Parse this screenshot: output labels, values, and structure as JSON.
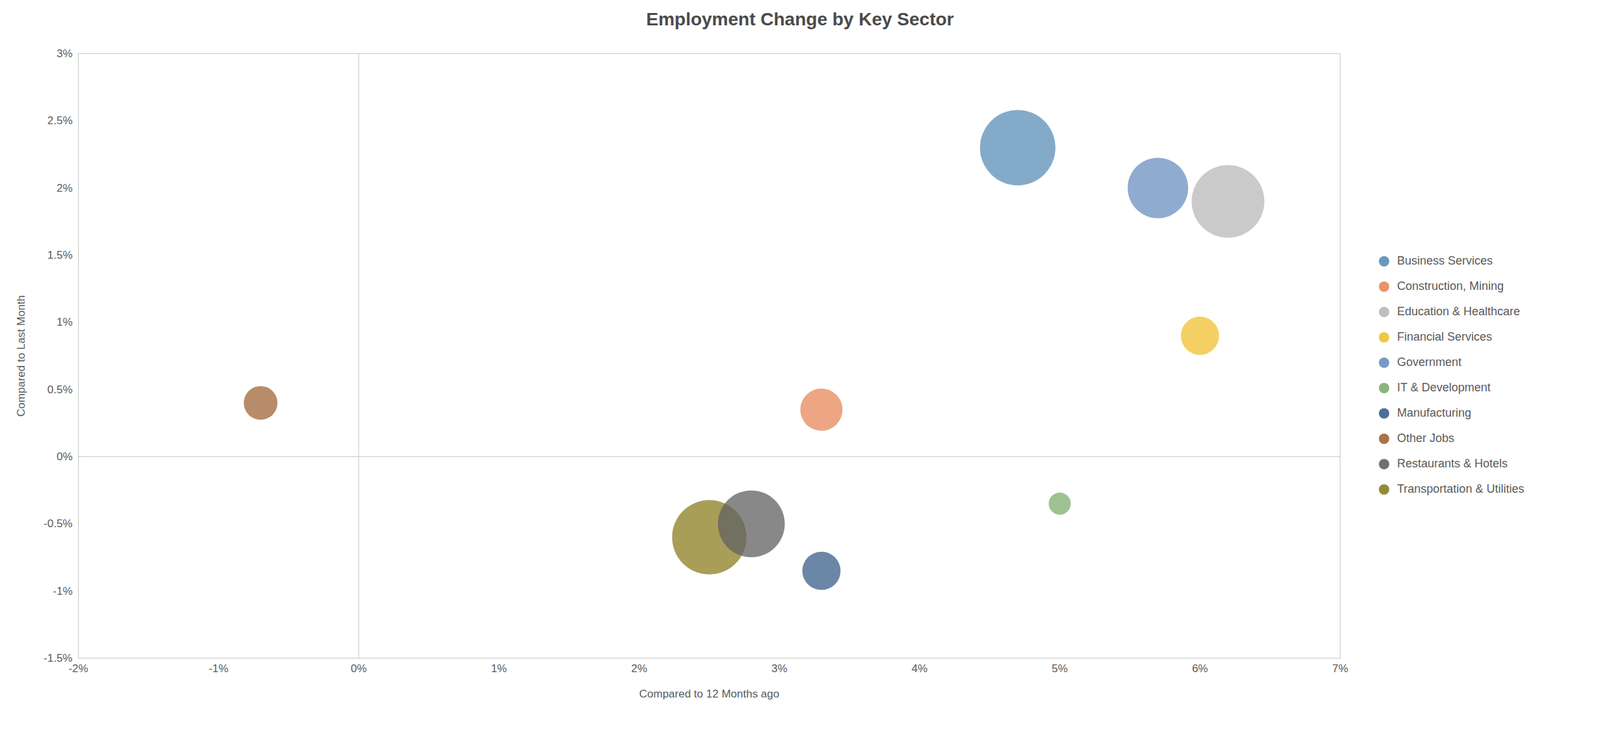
{
  "chart_data": {
    "type": "scatter",
    "title": "Employment Change by Key Sector",
    "xlabel": "Compared to 12 Months ago",
    "ylabel": "Compared to Last Month",
    "xlim": [
      -0.02,
      0.07
    ],
    "ylim": [
      -0.015,
      0.03
    ],
    "xticks": [
      {
        "value": -0.02,
        "label": "-2%"
      },
      {
        "value": -0.01,
        "label": "-1%"
      },
      {
        "value": 0,
        "label": "0%"
      },
      {
        "value": 0.01,
        "label": "1%"
      },
      {
        "value": 0.02,
        "label": "2%"
      },
      {
        "value": 0.03,
        "label": "3%"
      },
      {
        "value": 0.04,
        "label": "4%"
      },
      {
        "value": 0.05,
        "label": "5%"
      },
      {
        "value": 0.06,
        "label": "6%"
      },
      {
        "value": 0.07,
        "label": "7%"
      }
    ],
    "yticks": [
      {
        "value": -0.015,
        "label": "-1.5%"
      },
      {
        "value": -0.01,
        "label": "-1%"
      },
      {
        "value": -0.005,
        "label": "-0.5%"
      },
      {
        "value": 0,
        "label": "0%"
      },
      {
        "value": 0.005,
        "label": "0.5%"
      },
      {
        "value": 0.01,
        "label": "1%"
      },
      {
        "value": 0.015,
        "label": "1.5%"
      },
      {
        "value": 0.02,
        "label": "2%"
      },
      {
        "value": 0.025,
        "label": "2.5%"
      },
      {
        "value": 0.03,
        "label": "3%"
      }
    ],
    "grid": false,
    "legend": "right",
    "series": [
      {
        "name": "Business Services",
        "color": "#5b8db8",
        "x": [
          0.047
        ],
        "values": [
          0.023
        ],
        "size": [
          7000
        ]
      },
      {
        "name": "Construction, Mining",
        "color": "#e8875a",
        "x": [
          0.033
        ],
        "values": [
          0.0035
        ],
        "size": [
          2200
        ]
      },
      {
        "name": "Education & Healthcare",
        "color": "#b8b8b8",
        "x": [
          0.062
        ],
        "values": [
          0.019
        ],
        "size": [
          6500
        ]
      },
      {
        "name": "Financial Services",
        "color": "#f0c030",
        "x": [
          0.06
        ],
        "values": [
          0.009
        ],
        "size": [
          1800
        ]
      },
      {
        "name": "Government",
        "color": "#6a8fc0",
        "x": [
          0.057
        ],
        "values": [
          0.02
        ],
        "size": [
          4500
        ]
      },
      {
        "name": "IT & Development",
        "color": "#7dae6e",
        "x": [
          0.05
        ],
        "values": [
          -0.0035
        ],
        "size": [
          600
        ]
      },
      {
        "name": "Manufacturing",
        "color": "#3a5f8a",
        "x": [
          0.033
        ],
        "values": [
          -0.0085
        ],
        "size": [
          1800
        ]
      },
      {
        "name": "Other Jobs",
        "color": "#a06535",
        "x": [
          -0.007
        ],
        "values": [
          0.004
        ],
        "size": [
          1400
        ]
      },
      {
        "name": "Restaurants & Hotels",
        "color": "#606060",
        "x": [
          0.028
        ],
        "values": [
          -0.005
        ],
        "size": [
          5500
        ]
      },
      {
        "name": "Transportation & Utilities",
        "color": "#8b7d20",
        "x": [
          0.025
        ],
        "values": [
          -0.006
        ],
        "size": [
          6800
        ]
      }
    ]
  }
}
